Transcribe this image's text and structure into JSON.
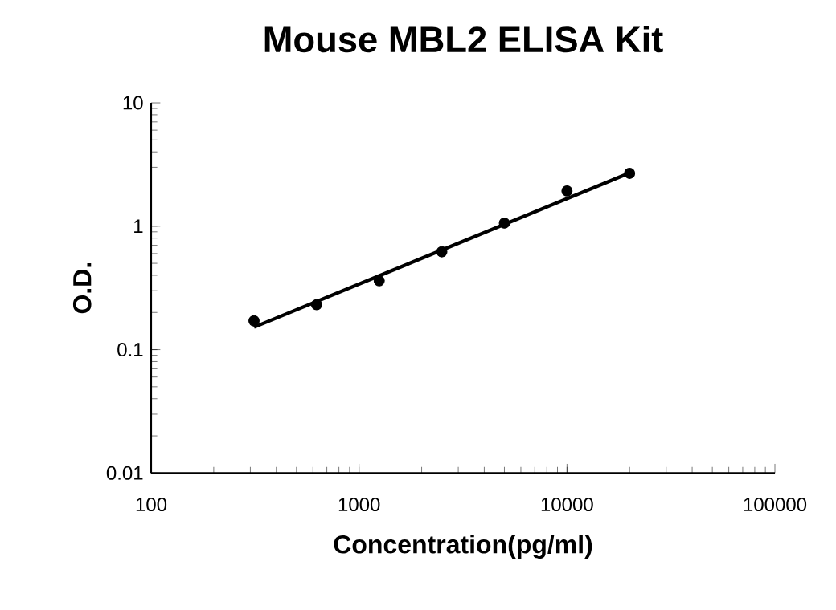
{
  "chart_data": {
    "type": "scatter",
    "title": "Mouse MBL2 ELISA Kit",
    "xlabel": "Concentration(pg/ml)",
    "ylabel": "O.D.",
    "log": "xy",
    "xlim": [
      100,
      100000
    ],
    "ylim": [
      0.01,
      10
    ],
    "xticks": [
      100,
      1000,
      10000,
      100000
    ],
    "yticks": [
      0.01,
      0.1,
      1,
      10
    ],
    "grid": false,
    "series": [
      {
        "marker": "circle",
        "color": "#000000",
        "x": [
          312.5,
          625,
          1250,
          2500,
          5000,
          10000,
          20000
        ],
        "values": [
          0.171,
          0.231,
          0.361,
          0.62,
          1.06,
          1.93,
          2.68
        ]
      },
      {
        "type": "line",
        "marker": "none",
        "color": "#000000",
        "x": [
          312.5,
          20000
        ],
        "values": [
          0.152,
          2.7
        ]
      }
    ]
  }
}
